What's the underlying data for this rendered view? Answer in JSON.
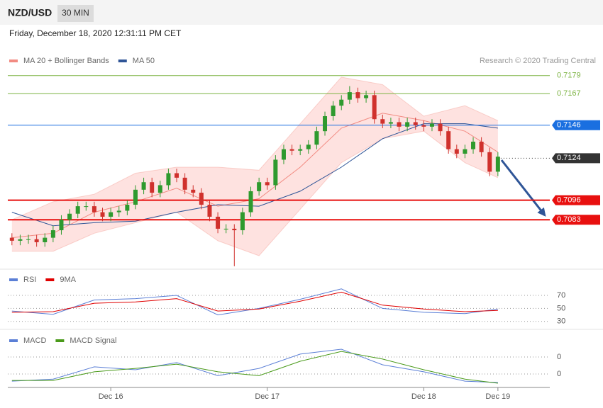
{
  "header": {
    "symbol": "NZD/USD",
    "timeframe": "30 MIN",
    "timestamp": "Friday, December 18, 2020 12:31:11 PM CET"
  },
  "chart_data": [
    {
      "type": "candlestick",
      "credit": "Research © 2020 Trading Central",
      "categories": [
        null,
        null,
        null,
        null,
        null,
        null,
        null,
        null,
        null,
        null,
        null,
        null,
        "Dec 16",
        null,
        null,
        null,
        null,
        null,
        null,
        null,
        null,
        null,
        null,
        null,
        null,
        null,
        null,
        null,
        null,
        null,
        null,
        "Dec 17",
        null,
        null,
        null,
        null,
        null,
        null,
        null,
        null,
        null,
        null,
        null,
        null,
        null,
        null,
        null,
        null,
        null,
        null,
        "Dec 18",
        null,
        null,
        null,
        null,
        null,
        null,
        null,
        null,
        "Dec 19"
      ],
      "open": [
        0.7071,
        0.7069,
        0.707,
        0.707,
        0.7068,
        0.7071,
        0.7076,
        0.7083,
        0.7087,
        0.7092,
        0.7092,
        0.7088,
        0.7085,
        0.7088,
        0.7089,
        0.7093,
        0.7103,
        0.7108,
        0.7101,
        0.7106,
        0.7114,
        0.7111,
        0.7103,
        0.7101,
        0.7093,
        0.7085,
        0.7077,
        0.7077,
        0.7076,
        0.7088,
        0.7102,
        0.7108,
        0.7106,
        0.7123,
        0.713,
        0.7129,
        0.713,
        0.7133,
        0.7142,
        0.7152,
        0.7159,
        0.7163,
        0.7168,
        0.7164,
        0.7166,
        0.715,
        0.7147,
        0.7148,
        0.7145,
        0.7148,
        0.7146,
        0.7145,
        0.7147,
        0.7142,
        0.713,
        0.7127,
        0.713,
        0.7135,
        0.7128,
        0.7115
      ],
      "high": [
        0.7074,
        0.7073,
        0.7073,
        0.7073,
        0.7074,
        0.7079,
        0.7086,
        0.709,
        0.7095,
        0.7095,
        0.7095,
        0.7091,
        0.7091,
        0.7092,
        0.7096,
        0.7106,
        0.7111,
        0.7111,
        0.7109,
        0.7117,
        0.7117,
        0.7114,
        0.7106,
        0.7104,
        0.7096,
        0.7088,
        0.708,
        0.708,
        0.7091,
        0.7105,
        0.7111,
        0.7111,
        0.7126,
        0.7133,
        0.7133,
        0.7133,
        0.7136,
        0.7145,
        0.7155,
        0.7162,
        0.7166,
        0.7172,
        0.7171,
        0.7169,
        0.7169,
        0.7153,
        0.7151,
        0.7151,
        0.7151,
        0.7151,
        0.7149,
        0.715,
        0.715,
        0.7145,
        0.7133,
        0.7133,
        0.7138,
        0.7138,
        0.7131,
        0.7128
      ],
      "low": [
        0.7066,
        0.7066,
        0.7067,
        0.7065,
        0.7065,
        0.7068,
        0.7073,
        0.708,
        0.7084,
        0.7089,
        0.7085,
        0.7082,
        0.7082,
        0.7085,
        0.7086,
        0.709,
        0.71,
        0.7098,
        0.7098,
        0.7103,
        0.7108,
        0.71,
        0.7098,
        0.709,
        0.7082,
        0.7074,
        0.7074,
        0.7052,
        0.7073,
        0.7085,
        0.7099,
        0.7103,
        0.7103,
        0.712,
        0.7126,
        0.7126,
        0.7127,
        0.713,
        0.7139,
        0.7149,
        0.7156,
        0.716,
        0.7161,
        0.7161,
        0.7147,
        0.7144,
        0.7144,
        0.7142,
        0.7142,
        0.7143,
        0.7142,
        0.7142,
        0.7139,
        0.7127,
        0.7124,
        0.7124,
        0.7127,
        0.7125,
        0.7112,
        0.7112
      ],
      "close": [
        0.7069,
        0.707,
        0.707,
        0.7068,
        0.7071,
        0.7076,
        0.7083,
        0.7087,
        0.7092,
        0.7092,
        0.7088,
        0.7085,
        0.7088,
        0.7089,
        0.7093,
        0.7103,
        0.7108,
        0.7101,
        0.7106,
        0.7114,
        0.7111,
        0.7103,
        0.7101,
        0.7093,
        0.7085,
        0.7077,
        0.7077,
        0.7076,
        0.7088,
        0.7102,
        0.7108,
        0.7106,
        0.7123,
        0.713,
        0.7129,
        0.713,
        0.7133,
        0.7142,
        0.7152,
        0.7159,
        0.7163,
        0.7168,
        0.7164,
        0.7166,
        0.715,
        0.7147,
        0.7148,
        0.7145,
        0.7148,
        0.7146,
        0.7145,
        0.7147,
        0.7142,
        0.713,
        0.7127,
        0.713,
        0.7135,
        0.7128,
        0.7115,
        0.7125
      ],
      "up_color": "#2e9a2e",
      "down_color": "#d0312d",
      "xlim": [
        -0.5,
        65.3
      ],
      "ylim": [
        0.7051,
        0.7194
      ],
      "x": [
        0,
        5,
        10,
        15,
        20,
        25,
        30,
        35,
        40,
        45,
        50,
        55,
        59
      ],
      "series": [
        {
          "name": "MA 20 + Bollinger Bands",
          "color": "#f28b82",
          "values": [
            0.7071,
            0.7074,
            0.7088,
            0.7095,
            0.7104,
            0.7092,
            0.7097,
            0.7118,
            0.7144,
            0.7154,
            0.7149,
            0.7142,
            0.7128
          ],
          "upper": [
            0.7083,
            0.7095,
            0.71,
            0.7114,
            0.7118,
            0.7118,
            0.7116,
            0.7147,
            0.7178,
            0.7173,
            0.7152,
            0.7159,
            0.7149
          ],
          "lower": [
            0.7062,
            0.7062,
            0.7074,
            0.7081,
            0.7088,
            0.7069,
            0.7059,
            0.709,
            0.7121,
            0.7137,
            0.7142,
            0.7121,
            0.7111
          ]
        },
        {
          "name": "MA 50",
          "color": "#2f5597",
          "values": [
            0.7088,
            0.7079,
            0.7081,
            0.7082,
            0.7088,
            0.7093,
            0.7092,
            0.7102,
            0.7118,
            0.7137,
            0.7147,
            0.7147,
            0.7144
          ]
        }
      ],
      "levels": [
        {
          "value": 0.7179,
          "color": "#7cb342",
          "line": "solid",
          "box": false
        },
        {
          "value": 0.7167,
          "color": "#7cb342",
          "line": "solid",
          "box": false
        },
        {
          "value": 0.7146,
          "color": "#1a6fe0",
          "line": "solid",
          "box": true
        },
        {
          "value": 0.7124,
          "color": "#333333",
          "line": "dotted",
          "box": true
        },
        {
          "value": 0.7096,
          "color": "#e8100f",
          "line": "solid",
          "box": true
        },
        {
          "value": 0.7083,
          "color": "#e8100f",
          "line": "solid",
          "box": true
        }
      ]
    },
    {
      "type": "line",
      "x": [
        0,
        5,
        10,
        15,
        20,
        25,
        30,
        35,
        40,
        45,
        50,
        55,
        59
      ],
      "ylim": [
        20,
        107
      ],
      "yticks": [
        70,
        50,
        30
      ],
      "series": [
        {
          "name": "RSI",
          "color": "#5b7fd6",
          "values": [
            46,
            41,
            63,
            65,
            70,
            40,
            50,
            64,
            80,
            50,
            44,
            42,
            49
          ]
        },
        {
          "name": "9MA",
          "color": "#e00000",
          "values": [
            44,
            45,
            58,
            60,
            65,
            46,
            49,
            61,
            75,
            55,
            49,
            45,
            47
          ]
        }
      ]
    },
    {
      "type": "line",
      "x": [
        0,
        5,
        10,
        15,
        20,
        25,
        30,
        35,
        40,
        45,
        50,
        55,
        59
      ],
      "ylim": [
        -0.00075,
        0.0025
      ],
      "yticks": [
        {
          "value": 0.001,
          "label": "0"
        },
        {
          "value": 0,
          "label": "0"
        }
      ],
      "series": [
        {
          "name": "MACD",
          "color": "#5b7fd6",
          "values": [
            -0.00042,
            -0.0003,
            0.00042,
            0.00025,
            0.00067,
            -0.0001,
            0.00033,
            0.00117,
            0.00146,
            0.00054,
            0.00013,
            -0.00042,
            -0.0005
          ]
        },
        {
          "name": "MACD Signal",
          "color": "#4a9a1a",
          "values": [
            -0.00038,
            -0.00038,
            0.00013,
            0.00033,
            0.00058,
            0.00013,
            -0.0001,
            0.00075,
            0.00133,
            0.00088,
            0.00025,
            -0.0003,
            -0.00054
          ]
        }
      ]
    }
  ]
}
